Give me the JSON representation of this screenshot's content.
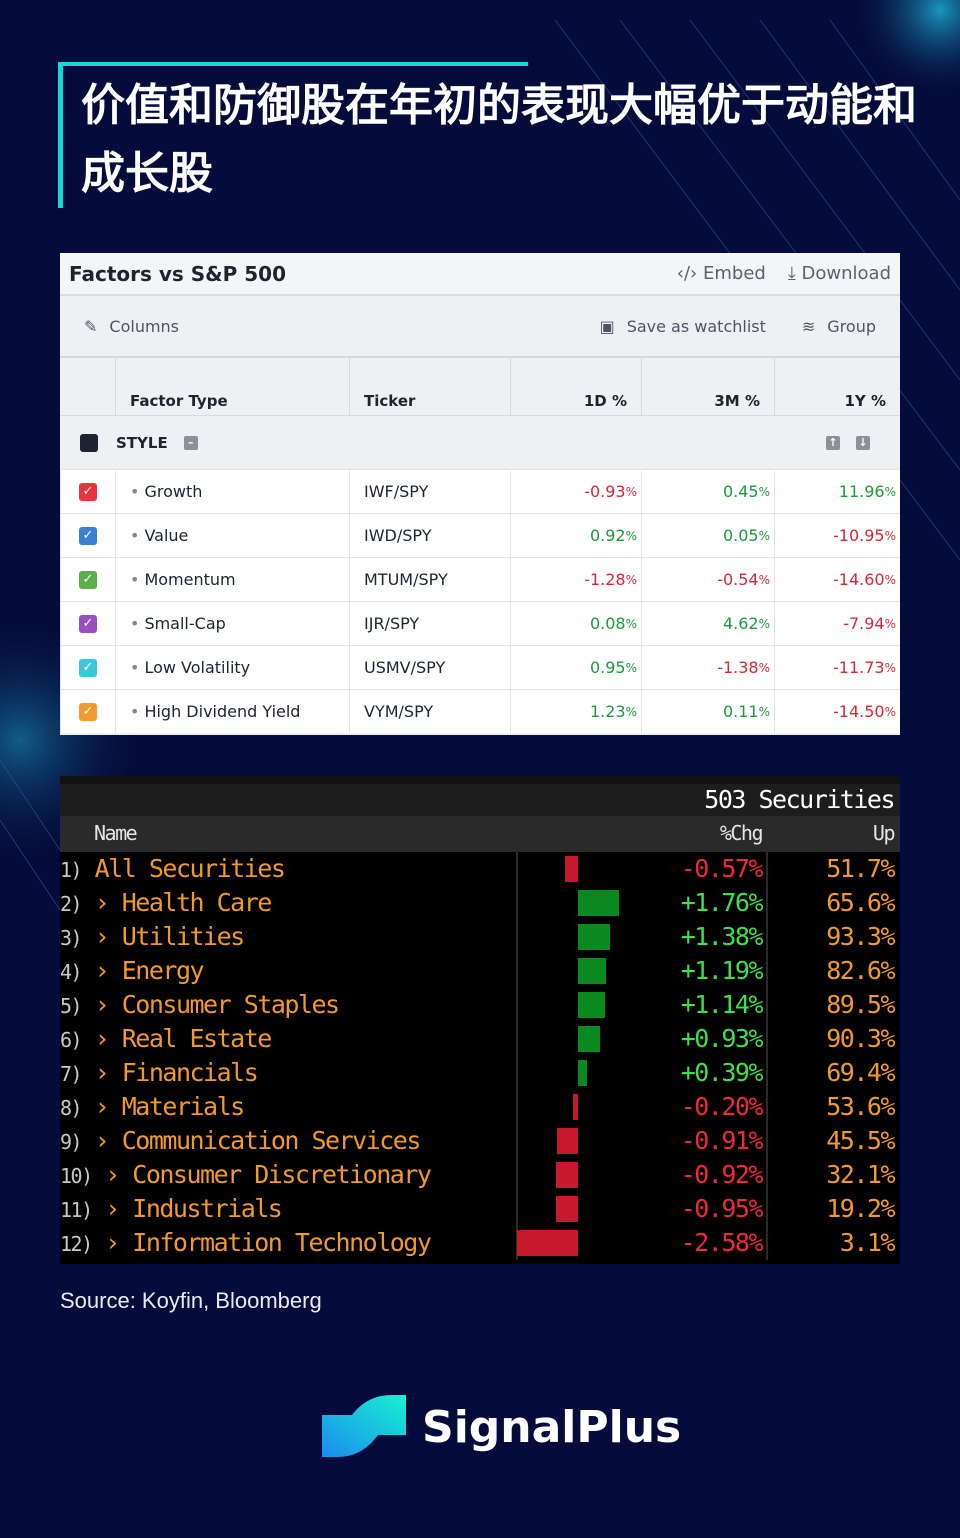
{
  "title": "价值和防御股在年初的表现大幅优于动能和成长股",
  "koyfin": {
    "title": "Factors vs S&P 500",
    "embed": "Embed",
    "download": "Download",
    "columns": "Columns",
    "save": "Save as watchlist",
    "group": "Group",
    "headers": [
      "Factor Type",
      "Ticker",
      "1D %",
      "3M %",
      "1Y %"
    ],
    "group_label": "STYLE",
    "rows": [
      {
        "name": "Growth",
        "ticker": "IWF/SPY",
        "d1": "-0.93",
        "m3": "0.45",
        "y1": "11.96",
        "color": "#e8343f"
      },
      {
        "name": "Value",
        "ticker": "IWD/SPY",
        "d1": "0.92",
        "m3": "0.05",
        "y1": "-10.95",
        "color": "#3a7fd0"
      },
      {
        "name": "Momentum",
        "ticker": "MTUM/SPY",
        "d1": "-1.28",
        "m3": "-0.54",
        "y1": "-14.60",
        "color": "#5ab04a"
      },
      {
        "name": "Small-Cap",
        "ticker": "IJR/SPY",
        "d1": "0.08",
        "m3": "4.62",
        "y1": "-7.94",
        "color": "#9a4fc0"
      },
      {
        "name": "Low Volatility",
        "ticker": "USMV/SPY",
        "d1": "0.95",
        "m3": "-1.38",
        "y1": "-11.73",
        "color": "#3cc7d8"
      },
      {
        "name": "High Dividend Yield",
        "ticker": "VYM/SPY",
        "d1": "1.23",
        "m3": "0.11",
        "y1": "-14.50",
        "color": "#f29a2e"
      }
    ]
  },
  "bloomberg": {
    "count": "503 Securities",
    "headers": [
      "Name",
      "%Chg",
      "Up"
    ],
    "rows": [
      {
        "n": "1)",
        "name": "All Securities",
        "chg": -0.57,
        "chg_text": "-0.57%",
        "up": "51.7%"
      },
      {
        "n": "2)",
        "name": "Health Care",
        "chg": 1.76,
        "chg_text": "+1.76%",
        "up": "65.6%"
      },
      {
        "n": "3)",
        "name": "Utilities",
        "chg": 1.38,
        "chg_text": "+1.38%",
        "up": "93.3%"
      },
      {
        "n": "4)",
        "name": "Energy",
        "chg": 1.19,
        "chg_text": "+1.19%",
        "up": "82.6%"
      },
      {
        "n": "5)",
        "name": "Consumer Staples",
        "chg": 1.14,
        "chg_text": "+1.14%",
        "up": "89.5%"
      },
      {
        "n": "6)",
        "name": "Real Estate",
        "chg": 0.93,
        "chg_text": "+0.93%",
        "up": "90.3%"
      },
      {
        "n": "7)",
        "name": "Financials",
        "chg": 0.39,
        "chg_text": "+0.39%",
        "up": "69.4%"
      },
      {
        "n": "8)",
        "name": "Materials",
        "chg": -0.2,
        "chg_text": "-0.20%",
        "up": "53.6%"
      },
      {
        "n": "9)",
        "name": "Communication Services",
        "chg": -0.91,
        "chg_text": "-0.91%",
        "up": "45.5%"
      },
      {
        "n": "10)",
        "name": "Consumer Discretionary",
        "chg": -0.92,
        "chg_text": "-0.92%",
        "up": "32.1%"
      },
      {
        "n": "11)",
        "name": "Industrials",
        "chg": -0.95,
        "chg_text": "-0.95%",
        "up": "19.2%"
      },
      {
        "n": "12)",
        "name": "Information Technology",
        "chg": -2.58,
        "chg_text": "-2.58%",
        "up": "3.1%"
      }
    ]
  },
  "source": "Source: Koyfin, Bloomberg",
  "brand": "SignalPlus",
  "colors": {
    "accent": "#18d6d0",
    "bg": "#050b3a",
    "pos": "#1a9b3a",
    "neg": "#d4283a"
  }
}
